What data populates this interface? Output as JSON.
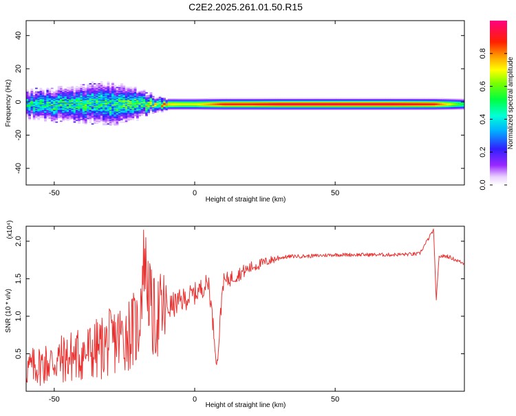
{
  "title": "C2E2.2025.261.01.50.R15",
  "chart_data": [
    {
      "type": "heatmap",
      "title": "C2E2.2025.261.01.50.R15",
      "xlabel": "Height of straight line (km)",
      "ylabel": "Frequency (Hz)",
      "xlim": [
        -60,
        96
      ],
      "ylim": [
        -50,
        49
      ],
      "xticks": [
        -50,
        0,
        50
      ],
      "yticks": [
        -40,
        -20,
        0,
        20,
        40
      ],
      "colorbar": {
        "label": "Normalized spectral amplitude",
        "range": [
          0,
          1
        ],
        "ticks": [
          "0.0",
          "0.2",
          "0.4",
          "0.6",
          "0.8"
        ],
        "tick_values": [
          0.0,
          0.2,
          0.4,
          0.6,
          0.8
        ],
        "colormap": "rainbow (white-violet-blue-cyan-green-yellow-orange-red-magenta)"
      },
      "center_frequency_hz": -1.5,
      "amplitude_profile": [
        {
          "x": -60,
          "amp": 0.45,
          "spread": 5
        },
        {
          "x": -50,
          "amp": 0.45,
          "spread": 6
        },
        {
          "x": -40,
          "amp": 0.45,
          "spread": 7
        },
        {
          "x": -30,
          "amp": 0.45,
          "spread": 8
        },
        {
          "x": -22,
          "amp": 0.5,
          "spread": 6
        },
        {
          "x": -15,
          "amp": 0.6,
          "spread": 3
        },
        {
          "x": -10,
          "amp": 0.75,
          "spread": 2
        },
        {
          "x": -5,
          "amp": 0.7,
          "spread": 2
        },
        {
          "x": 0,
          "amp": 0.7,
          "spread": 2
        },
        {
          "x": 5,
          "amp": 0.8,
          "spread": 2
        },
        {
          "x": 10,
          "amp": 0.9,
          "spread": 2
        },
        {
          "x": 20,
          "amp": 0.9,
          "spread": 2
        },
        {
          "x": 30,
          "amp": 0.95,
          "spread": 2
        },
        {
          "x": 50,
          "amp": 0.95,
          "spread": 2
        },
        {
          "x": 70,
          "amp": 0.95,
          "spread": 2
        },
        {
          "x": 85,
          "amp": 0.9,
          "spread": 2
        },
        {
          "x": 96,
          "amp": 0.5,
          "spread": 2
        }
      ]
    },
    {
      "type": "line",
      "xlabel": "Height of straight line (km)",
      "ylabel": "SNR (10 * v/v)",
      "y_multiplier": "(x10⁴)",
      "xlim": [
        -60,
        96
      ],
      "ylim": [
        0.0,
        2.2
      ],
      "xticks": [
        -50,
        0,
        50
      ],
      "yticks": [
        0.5,
        1.0,
        1.5,
        2.0
      ],
      "ytick_labels": [
        "0.5",
        "1.0",
        "1.5",
        "2.0"
      ],
      "color": "#e8312f",
      "x": [
        -60,
        -55,
        -50,
        -45,
        -40,
        -35,
        -30,
        -25,
        -20,
        -18,
        -15,
        -10,
        -5,
        0,
        5,
        8,
        10,
        15,
        20,
        25,
        30,
        35,
        40,
        50,
        60,
        70,
        80,
        85,
        86,
        87,
        90,
        96
      ],
      "y": [
        0.3,
        0.35,
        0.4,
        0.45,
        0.5,
        0.55,
        0.65,
        0.75,
        0.85,
        1.8,
        0.95,
        1.1,
        1.2,
        1.3,
        1.45,
        0.35,
        1.45,
        1.55,
        1.65,
        1.72,
        1.78,
        1.8,
        1.8,
        1.82,
        1.82,
        1.82,
        1.83,
        2.15,
        1.2,
        1.8,
        1.8,
        1.7
      ]
    }
  ]
}
